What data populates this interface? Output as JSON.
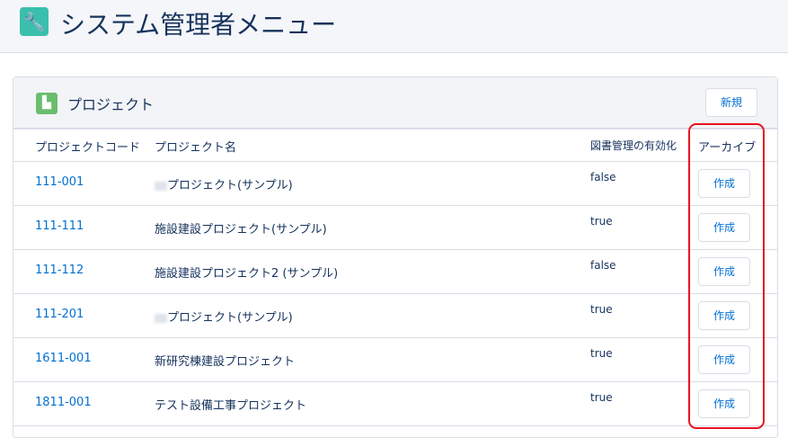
{
  "page": {
    "title": "システム管理者メニュー",
    "icon": "wrench-icon"
  },
  "card": {
    "title": "プロジェクト",
    "icon": "factory-icon",
    "new_label": "新規",
    "columns": [
      "プロジェクトコード",
      "プロジェクト名",
      "図書管理の有効化",
      "アーカイブ"
    ],
    "rows": [
      {
        "code": "111-001",
        "name": "プロジェクト(サンプル)",
        "redacted": true,
        "library": "false",
        "action": "作成"
      },
      {
        "code": "111-111",
        "name": "施設建設プロジェクト(サンプル)",
        "redacted": false,
        "library": "true",
        "action": "作成"
      },
      {
        "code": "111-112",
        "name": "施設建設プロジェクト2 (サンプル)",
        "redacted": false,
        "library": "false",
        "action": "作成"
      },
      {
        "code": "111-201",
        "name": "プロジェクト(サンプル)",
        "redacted": true,
        "library": "true",
        "action": "作成"
      },
      {
        "code": "1611-001",
        "name": "新研究棟建設プロジェクト",
        "redacted": false,
        "library": "true",
        "action": "作成"
      },
      {
        "code": "1811-001",
        "name": "テスト設備工事プロジェクト",
        "redacted": false,
        "library": "true",
        "action": "作成"
      }
    ]
  },
  "colors": {
    "accent": "#0070d2",
    "highlight": "#e8131f"
  }
}
